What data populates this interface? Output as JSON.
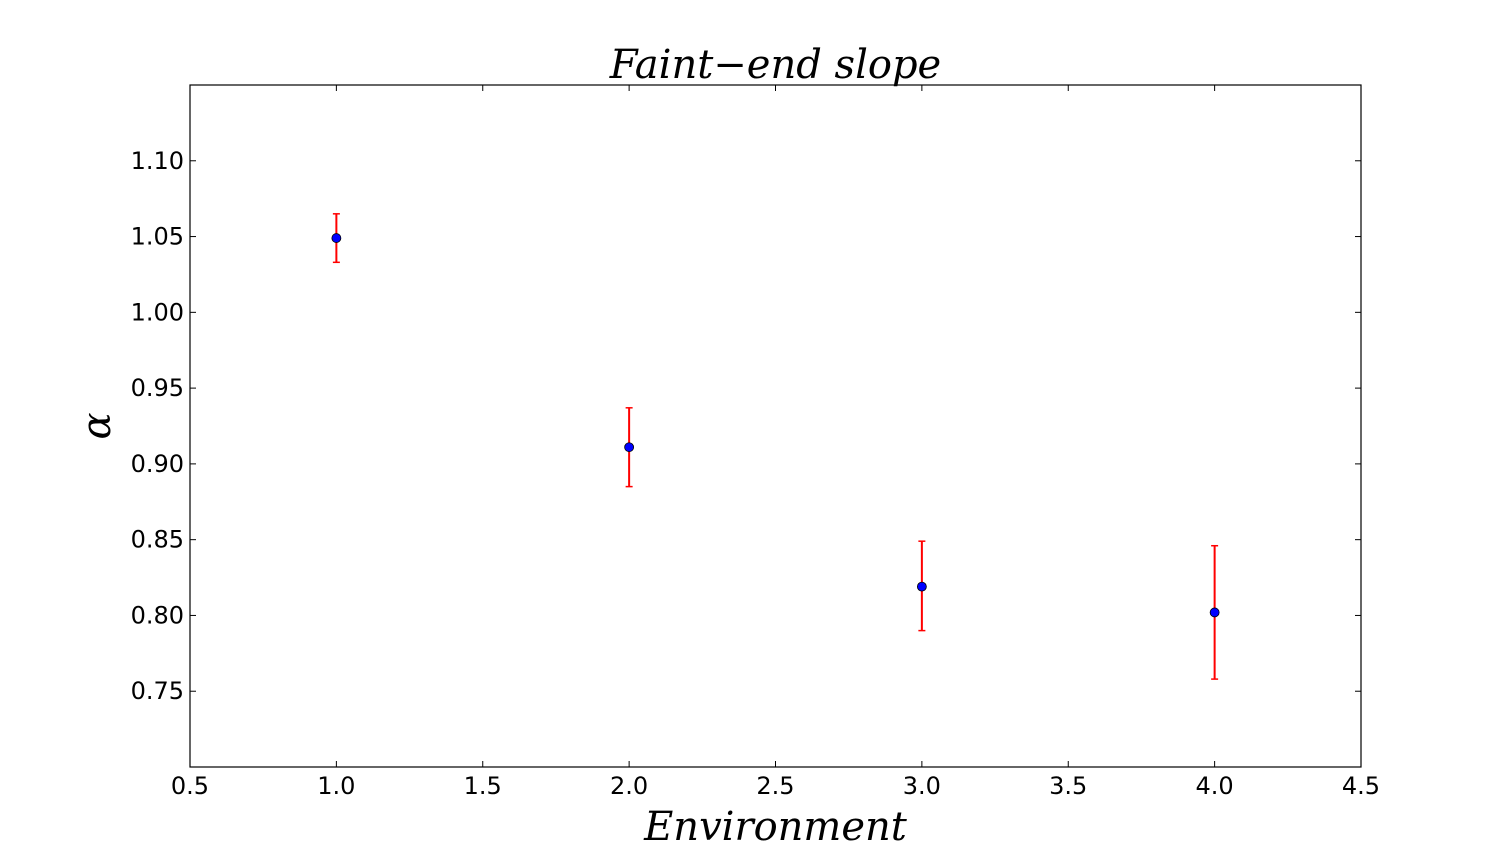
{
  "chart_data": {
    "type": "scatter",
    "title": "Faint−end slope",
    "xlabel": "Environment",
    "ylabel": "α",
    "xlim": [
      0.5,
      4.5
    ],
    "ylim": [
      0.7,
      1.15
    ],
    "xticks": [
      0.5,
      1.0,
      1.5,
      2.0,
      2.5,
      3.0,
      3.5,
      4.0,
      4.5
    ],
    "xtick_labels": [
      "0.5",
      "1.0",
      "1.5",
      "2.0",
      "2.5",
      "3.0",
      "3.5",
      "4.0",
      "4.5"
    ],
    "yticks": [
      0.75,
      0.8,
      0.85,
      0.9,
      0.95,
      1.0,
      1.05,
      1.1
    ],
    "ytick_labels": [
      "0.75",
      "0.80",
      "0.85",
      "0.90",
      "0.95",
      "1.00",
      "1.05",
      "1.10"
    ],
    "grid": false,
    "series": [
      {
        "x": [
          1.0,
          2.0,
          3.0,
          4.0
        ],
        "y": [
          1.049,
          0.911,
          0.819,
          0.802
        ],
        "y_err_low": [
          0.016,
          0.026,
          0.029,
          0.044
        ],
        "y_err_high": [
          0.016,
          0.026,
          0.03,
          0.044
        ],
        "marker_color": "#0000ff",
        "errorbar_color": "#ff0000"
      }
    ]
  }
}
